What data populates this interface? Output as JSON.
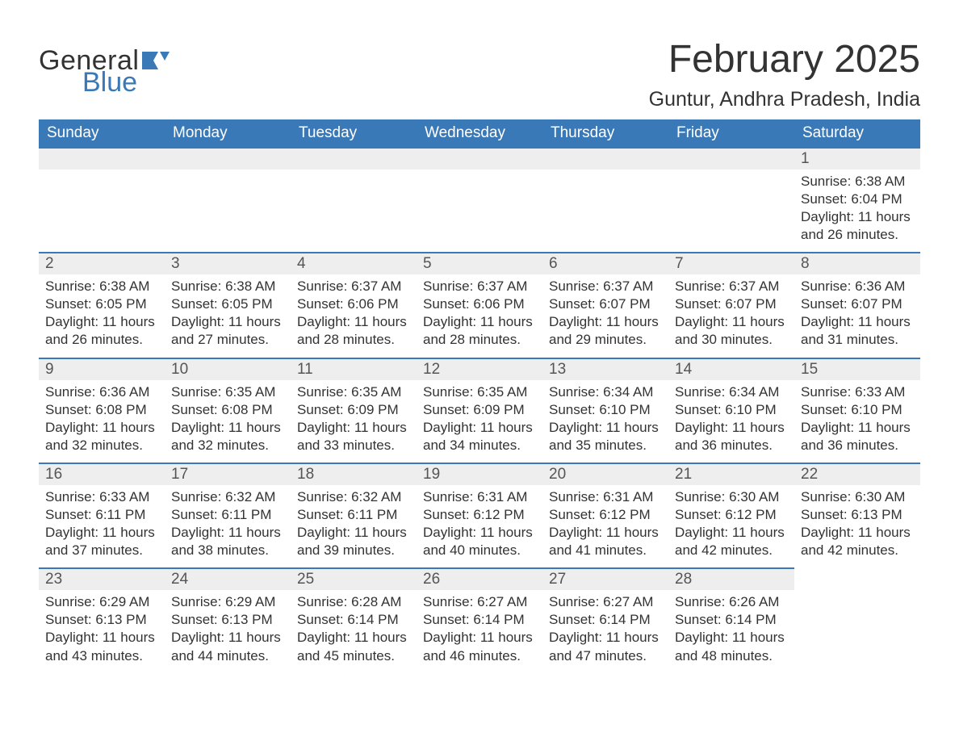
{
  "logo": {
    "word1": "General",
    "word2": "Blue",
    "flag_color": "#3a79b7"
  },
  "header": {
    "month_title": "February 2025",
    "location": "Guntur, Andhra Pradesh, India"
  },
  "colors": {
    "header_bg": "#3a79b7",
    "header_text": "#ffffff",
    "daynum_bg": "#eeeeee",
    "row_border": "#3a79b7",
    "body_text": "#333333",
    "page_bg": "#ffffff"
  },
  "typography": {
    "title_fontsize_pt": 36,
    "location_fontsize_pt": 19,
    "dayheader_fontsize_pt": 14,
    "daynum_fontsize_pt": 14,
    "body_fontsize_pt": 13
  },
  "weekdays": [
    "Sunday",
    "Monday",
    "Tuesday",
    "Wednesday",
    "Thursday",
    "Friday",
    "Saturday"
  ],
  "weeks": [
    [
      null,
      null,
      null,
      null,
      null,
      null,
      {
        "n": "1",
        "sr": "Sunrise: 6:38 AM",
        "ss": "Sunset: 6:04 PM",
        "dl1": "Daylight: 11 hours",
        "dl2": "and 26 minutes."
      }
    ],
    [
      {
        "n": "2",
        "sr": "Sunrise: 6:38 AM",
        "ss": "Sunset: 6:05 PM",
        "dl1": "Daylight: 11 hours",
        "dl2": "and 26 minutes."
      },
      {
        "n": "3",
        "sr": "Sunrise: 6:38 AM",
        "ss": "Sunset: 6:05 PM",
        "dl1": "Daylight: 11 hours",
        "dl2": "and 27 minutes."
      },
      {
        "n": "4",
        "sr": "Sunrise: 6:37 AM",
        "ss": "Sunset: 6:06 PM",
        "dl1": "Daylight: 11 hours",
        "dl2": "and 28 minutes."
      },
      {
        "n": "5",
        "sr": "Sunrise: 6:37 AM",
        "ss": "Sunset: 6:06 PM",
        "dl1": "Daylight: 11 hours",
        "dl2": "and 28 minutes."
      },
      {
        "n": "6",
        "sr": "Sunrise: 6:37 AM",
        "ss": "Sunset: 6:07 PM",
        "dl1": "Daylight: 11 hours",
        "dl2": "and 29 minutes."
      },
      {
        "n": "7",
        "sr": "Sunrise: 6:37 AM",
        "ss": "Sunset: 6:07 PM",
        "dl1": "Daylight: 11 hours",
        "dl2": "and 30 minutes."
      },
      {
        "n": "8",
        "sr": "Sunrise: 6:36 AM",
        "ss": "Sunset: 6:07 PM",
        "dl1": "Daylight: 11 hours",
        "dl2": "and 31 minutes."
      }
    ],
    [
      {
        "n": "9",
        "sr": "Sunrise: 6:36 AM",
        "ss": "Sunset: 6:08 PM",
        "dl1": "Daylight: 11 hours",
        "dl2": "and 32 minutes."
      },
      {
        "n": "10",
        "sr": "Sunrise: 6:35 AM",
        "ss": "Sunset: 6:08 PM",
        "dl1": "Daylight: 11 hours",
        "dl2": "and 32 minutes."
      },
      {
        "n": "11",
        "sr": "Sunrise: 6:35 AM",
        "ss": "Sunset: 6:09 PM",
        "dl1": "Daylight: 11 hours",
        "dl2": "and 33 minutes."
      },
      {
        "n": "12",
        "sr": "Sunrise: 6:35 AM",
        "ss": "Sunset: 6:09 PM",
        "dl1": "Daylight: 11 hours",
        "dl2": "and 34 minutes."
      },
      {
        "n": "13",
        "sr": "Sunrise: 6:34 AM",
        "ss": "Sunset: 6:10 PM",
        "dl1": "Daylight: 11 hours",
        "dl2": "and 35 minutes."
      },
      {
        "n": "14",
        "sr": "Sunrise: 6:34 AM",
        "ss": "Sunset: 6:10 PM",
        "dl1": "Daylight: 11 hours",
        "dl2": "and 36 minutes."
      },
      {
        "n": "15",
        "sr": "Sunrise: 6:33 AM",
        "ss": "Sunset: 6:10 PM",
        "dl1": "Daylight: 11 hours",
        "dl2": "and 36 minutes."
      }
    ],
    [
      {
        "n": "16",
        "sr": "Sunrise: 6:33 AM",
        "ss": "Sunset: 6:11 PM",
        "dl1": "Daylight: 11 hours",
        "dl2": "and 37 minutes."
      },
      {
        "n": "17",
        "sr": "Sunrise: 6:32 AM",
        "ss": "Sunset: 6:11 PM",
        "dl1": "Daylight: 11 hours",
        "dl2": "and 38 minutes."
      },
      {
        "n": "18",
        "sr": "Sunrise: 6:32 AM",
        "ss": "Sunset: 6:11 PM",
        "dl1": "Daylight: 11 hours",
        "dl2": "and 39 minutes."
      },
      {
        "n": "19",
        "sr": "Sunrise: 6:31 AM",
        "ss": "Sunset: 6:12 PM",
        "dl1": "Daylight: 11 hours",
        "dl2": "and 40 minutes."
      },
      {
        "n": "20",
        "sr": "Sunrise: 6:31 AM",
        "ss": "Sunset: 6:12 PM",
        "dl1": "Daylight: 11 hours",
        "dl2": "and 41 minutes."
      },
      {
        "n": "21",
        "sr": "Sunrise: 6:30 AM",
        "ss": "Sunset: 6:12 PM",
        "dl1": "Daylight: 11 hours",
        "dl2": "and 42 minutes."
      },
      {
        "n": "22",
        "sr": "Sunrise: 6:30 AM",
        "ss": "Sunset: 6:13 PM",
        "dl1": "Daylight: 11 hours",
        "dl2": "and 42 minutes."
      }
    ],
    [
      {
        "n": "23",
        "sr": "Sunrise: 6:29 AM",
        "ss": "Sunset: 6:13 PM",
        "dl1": "Daylight: 11 hours",
        "dl2": "and 43 minutes."
      },
      {
        "n": "24",
        "sr": "Sunrise: 6:29 AM",
        "ss": "Sunset: 6:13 PM",
        "dl1": "Daylight: 11 hours",
        "dl2": "and 44 minutes."
      },
      {
        "n": "25",
        "sr": "Sunrise: 6:28 AM",
        "ss": "Sunset: 6:14 PM",
        "dl1": "Daylight: 11 hours",
        "dl2": "and 45 minutes."
      },
      {
        "n": "26",
        "sr": "Sunrise: 6:27 AM",
        "ss": "Sunset: 6:14 PM",
        "dl1": "Daylight: 11 hours",
        "dl2": "and 46 minutes."
      },
      {
        "n": "27",
        "sr": "Sunrise: 6:27 AM",
        "ss": "Sunset: 6:14 PM",
        "dl1": "Daylight: 11 hours",
        "dl2": "and 47 minutes."
      },
      {
        "n": "28",
        "sr": "Sunrise: 6:26 AM",
        "ss": "Sunset: 6:14 PM",
        "dl1": "Daylight: 11 hours",
        "dl2": "and 48 minutes."
      },
      null
    ]
  ]
}
